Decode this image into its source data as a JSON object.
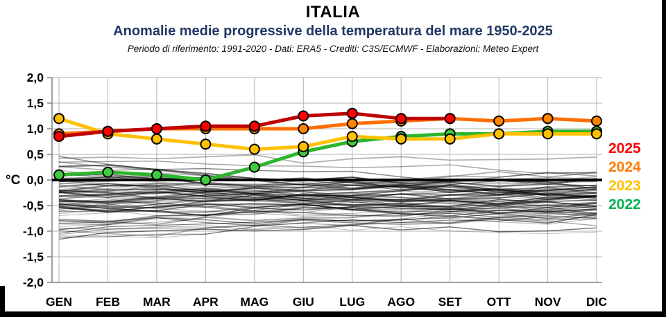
{
  "header": {
    "title": "ITALIA",
    "subtitle": "Anomalie medie progressive della temperatura del mare 1950-2025",
    "subtitle_color": "#1F3864",
    "credits": "Periodo di riferimento: 1991-2020 - Dati: ERA5 - Crediti: C3S/ECMWF - Elaborazioni: Meteo Expert"
  },
  "axis": {
    "ylabel": "°C",
    "ytick_labels": [
      "2,0",
      "1,5",
      "1,0",
      "0,5",
      "0,0",
      "-0,5",
      "-1,0",
      "-1,5",
      "-2,0"
    ],
    "ytick_values": [
      2.0,
      1.5,
      1.0,
      0.5,
      0.0,
      -0.5,
      -1.0,
      -1.5,
      -2.0
    ],
    "grid_color": "#b3b3b3",
    "axis_color": "#808080"
  },
  "legend": {
    "items": [
      {
        "label": "2025",
        "color": "#FF0000"
      },
      {
        "label": "2024",
        "color": "#FF7B00"
      },
      {
        "label": "2023",
        "color": "#FFC000"
      },
      {
        "label": "2022",
        "color": "#00B050"
      }
    ]
  },
  "chart_data": {
    "type": "line",
    "title": "ITALIA",
    "subtitle": "Anomalie medie progressive della temperatura del mare 1950-2025",
    "xlabel": "",
    "ylabel": "°C",
    "ylim": [
      -2.0,
      2.0
    ],
    "grid": true,
    "legend_position": "right",
    "categories": [
      "GEN",
      "FEB",
      "MAR",
      "APR",
      "MAG",
      "GIU",
      "LUG",
      "AGO",
      "SET",
      "OTT",
      "NOV",
      "DIC"
    ],
    "series": [
      {
        "name": "2022",
        "line_color": "#2DB52D",
        "dot_color": "#3FCC3F",
        "values": [
          0.1,
          0.15,
          0.1,
          0.0,
          0.25,
          0.55,
          0.75,
          0.85,
          0.9,
          0.9,
          0.95,
          0.95
        ]
      },
      {
        "name": "2023",
        "line_color": "#FFC000",
        "dot_color": "#FFC000",
        "values": [
          1.2,
          0.9,
          0.8,
          0.7,
          0.6,
          0.65,
          0.85,
          0.8,
          0.8,
          0.9,
          0.9,
          0.9
        ]
      },
      {
        "name": "2024",
        "line_color": "#FF6F00",
        "dot_color": "#FF8400",
        "values": [
          0.9,
          0.95,
          1.0,
          1.0,
          1.0,
          1.0,
          1.1,
          1.15,
          1.2,
          1.15,
          1.2,
          1.15
        ]
      },
      {
        "name": "2025",
        "line_color": "#C00000",
        "dot_color": "#FF0000",
        "values": [
          0.85,
          0.95,
          1.0,
          1.05,
          1.05,
          1.25,
          1.3,
          1.2,
          1.2,
          null,
          null,
          null
        ]
      }
    ],
    "reference_line": {
      "value": 0.0,
      "color": "#000000",
      "width": 4
    },
    "background": {
      "description": "unlabeled gray progressive-anomaly lines for the years 1950-2021",
      "years": "1950-2021",
      "count": 72,
      "seed": 11,
      "start_range": [
        -1.25,
        0.55
      ],
      "converge_center": -0.3,
      "converge_factor": 0.6,
      "step": 0.24,
      "alpha_range": [
        0.18,
        0.56
      ],
      "width_range": [
        1.0,
        2.1
      ]
    }
  }
}
